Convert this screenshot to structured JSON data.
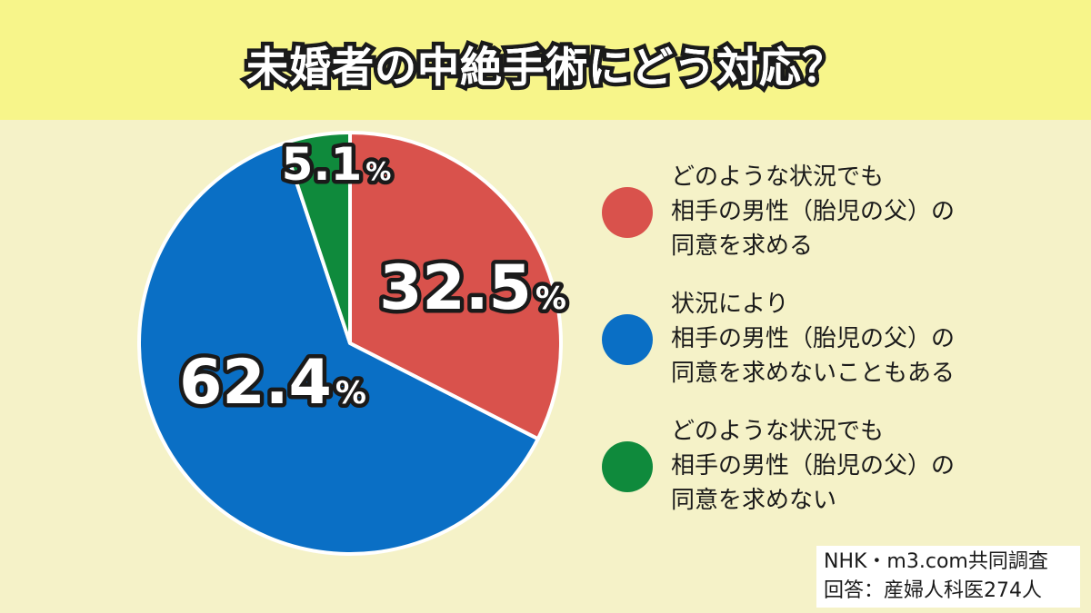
{
  "title": "未婚者の中絶手術にどう対応？",
  "chart_data": {
    "type": "pie",
    "title": "未婚者の中絶手術にどう対応？",
    "slices": [
      {
        "label_lines": [
          "どのような状況でも",
          "相手の男性（胎児の父）の",
          "同意を求める"
        ],
        "value": 32.5,
        "value_label": "32.5",
        "unit": "%",
        "color": "#d9524c"
      },
      {
        "label_lines": [
          "状況により",
          "相手の男性（胎児の父）の",
          "同意を求めないこともある"
        ],
        "value": 62.4,
        "value_label": "62.4",
        "unit": "%",
        "color": "#0a6fc5"
      },
      {
        "label_lines": [
          "どのような状況でも",
          "相手の男性（胎児の父）の",
          "同意を求めない"
        ],
        "value": 5.1,
        "value_label": "5.1",
        "unit": "%",
        "color": "#0f8a3c"
      }
    ],
    "legend_placement": "right"
  },
  "source": {
    "line1": "NHK・m3.com共同調査",
    "line2": "回答：産婦人科医274人"
  }
}
